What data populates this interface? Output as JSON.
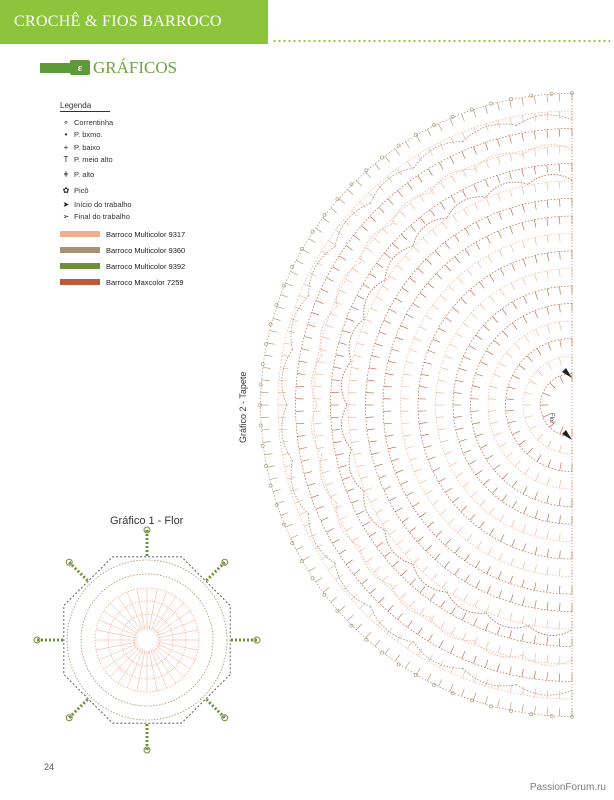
{
  "header": {
    "title": "CROCHÊ & FIOS BARROCO"
  },
  "section": {
    "title": "GRÁFICOS"
  },
  "legend": {
    "title": "Legenda",
    "items": [
      {
        "symbol": "⚬",
        "label": "Correntinha"
      },
      {
        "symbol": "•",
        "label": "P. bxmo."
      },
      {
        "symbol": "+",
        "label": "P. baixo"
      },
      {
        "symbol": "T",
        "label": "P. meio alto"
      },
      {
        "symbol": "ǂ",
        "label": "P. alto"
      },
      {
        "symbol": "✿",
        "label": "Picô"
      },
      {
        "symbol": "➤",
        "label": "Início do trabalho"
      },
      {
        "symbol": "➢",
        "label": "Final do trabalho"
      }
    ],
    "colors": [
      {
        "label": "Barroco Multicolor 9317",
        "color": "#f2ae94"
      },
      {
        "label": "Barroco Multicolor 9360",
        "color": "#a79074"
      },
      {
        "label": "Barroco Multicolor 9392",
        "color": "#6f8f3a"
      },
      {
        "label": "Barroco Maxcolor 7259",
        "color": "#bf5a3c"
      }
    ]
  },
  "chart2": {
    "label": "Gráfico 2 - Tapete",
    "center_label": "Flor"
  },
  "chart1": {
    "title": "Gráfico 1 - Flor"
  },
  "page_number": "24",
  "watermark": "PassionForum.ru",
  "colors": {
    "accent": "#8cc43c",
    "dark_green": "#5f9a3a"
  }
}
